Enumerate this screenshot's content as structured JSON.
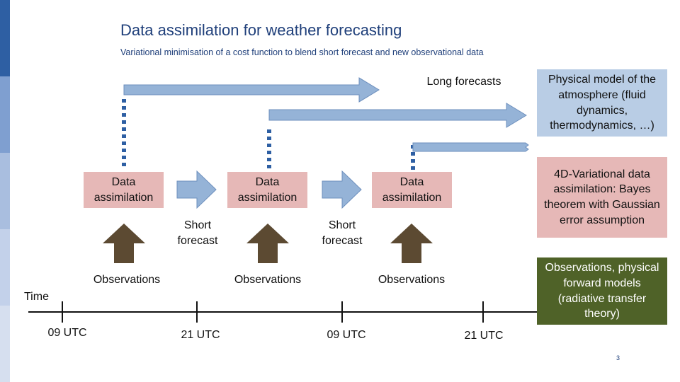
{
  "header": {
    "title": "Data assimilation for weather forecasting",
    "subtitle": "Variational minimisation of a cost function to blend short forecast and new observational data"
  },
  "labels": {
    "long_forecasts": "Long forecasts",
    "time": "Time",
    "short_forecast_1": "Short forecast",
    "short_forecast_2": "Short forecast"
  },
  "assimilation_boxes": [
    "Data assimilation",
    "Data assimilation",
    "Data assimilation"
  ],
  "observations": [
    "Observations",
    "Observations",
    "Observations"
  ],
  "timeline_ticks": [
    "09 UTC",
    "21 UTC",
    "09 UTC",
    "21 UTC"
  ],
  "side_boxes": {
    "physical_model": "Physical model of the atmosphere (fluid dynamics, thermodynamics, …)",
    "var4d": "4D-Variational data assimilation: Bayes theorem with Gaussian error assumption",
    "obs_models": "Observations, physical forward models (radiative transfer theory)"
  },
  "page_number": "3",
  "colors": {
    "title": "#1f3f7a",
    "assimilation_box": "#e6b8b7",
    "forecast_arrow": "#95b3d7",
    "observation_arrow": "#5c4a32",
    "physical_box": "#b9cde5",
    "obs_box": "#4f6228",
    "sidebar": [
      "#2e5fa3",
      "#7f9fd0",
      "#a9bedf",
      "#c3d1ea",
      "#d6dfef"
    ]
  },
  "icons": [
    "dotted-connector",
    "forecast-arrow",
    "observation-arrow",
    "timeline"
  ]
}
